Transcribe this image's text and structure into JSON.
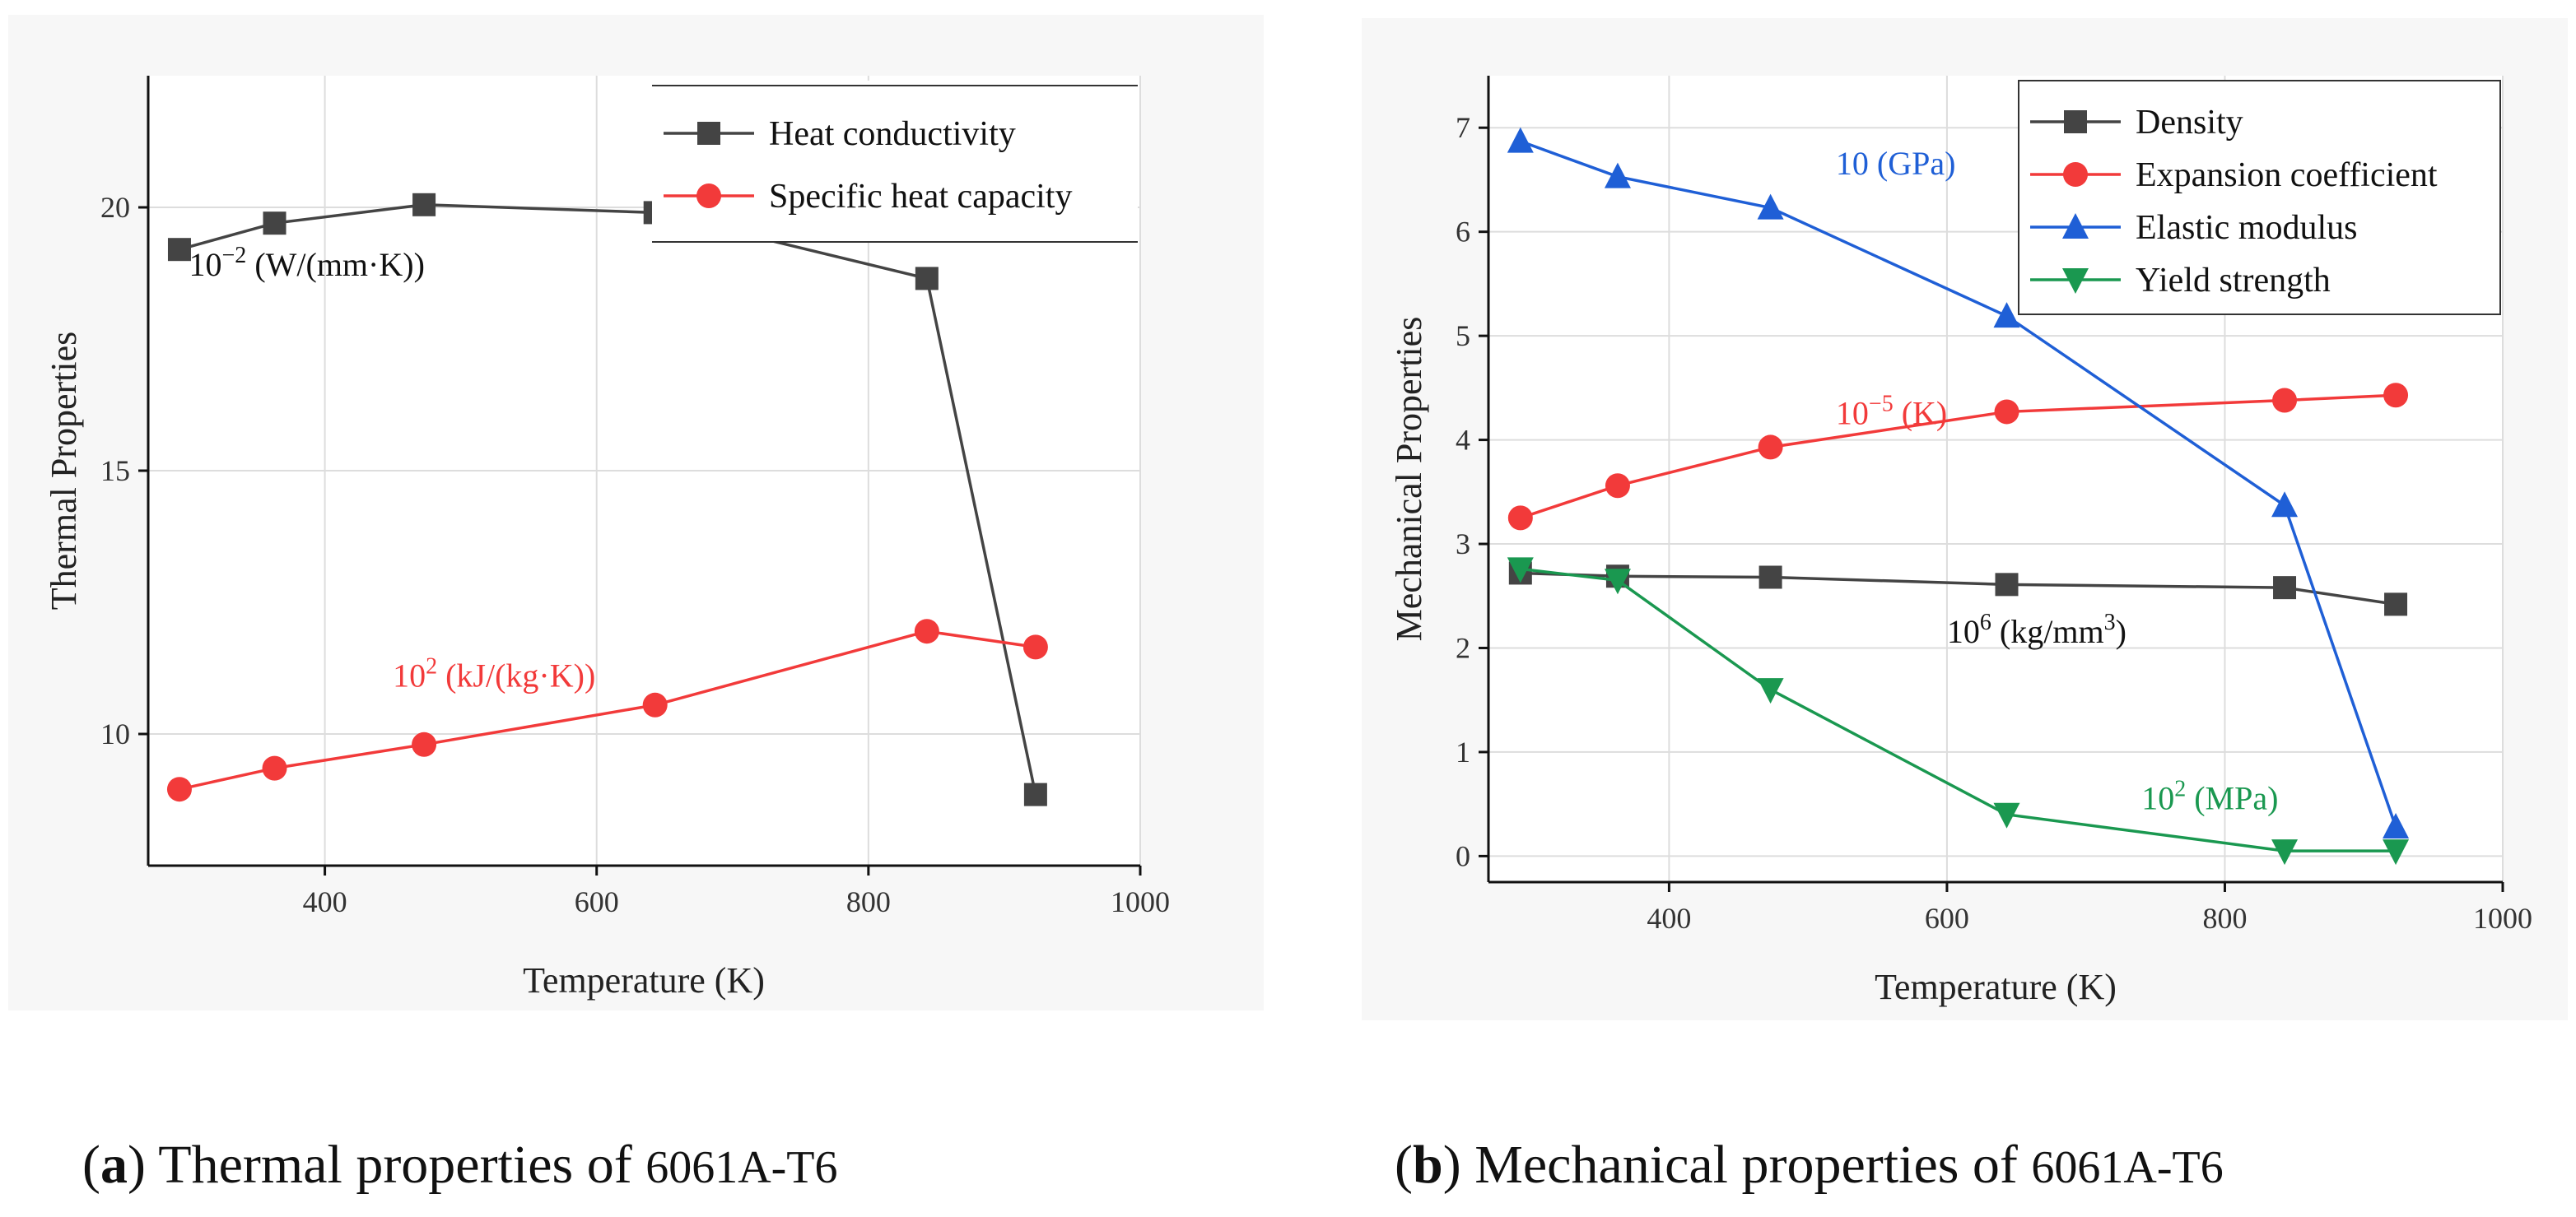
{
  "chart_data": [
    {
      "id": "a",
      "type": "line",
      "title": "",
      "xlabel": "Temperature (K)",
      "ylabel": "Thermal Properties",
      "xlim": [
        270,
        1000
      ],
      "ylim": [
        7.5,
        22.5
      ],
      "xticks": [
        "400",
        "600",
        "800",
        "1000"
      ],
      "yticks": [
        "10",
        "15",
        "20"
      ],
      "legend_position": "top-right",
      "series": [
        {
          "name": "Heat conductivity",
          "color": "#444444",
          "marker": "square",
          "x": [
            293,
            363,
            473,
            643,
            843,
            923
          ],
          "y": [
            19.2,
            19.7,
            20.05,
            19.9,
            18.65,
            8.85
          ]
        },
        {
          "name": "Specific heat capacity",
          "color": "#f23a3a",
          "marker": "circle",
          "x": [
            293,
            363,
            473,
            643,
            843,
            923
          ],
          "y": [
            8.95,
            9.35,
            9.8,
            10.55,
            11.95,
            11.65
          ]
        }
      ],
      "annotations": [
        {
          "base": "10",
          "sup": "−2",
          "rest": " (W/(mm·K))",
          "color": "#111111",
          "x": 300,
          "y": 18.7
        },
        {
          "base": "10",
          "sup": "2",
          "rest": " (kJ/(kg·K))",
          "color": "#f23a3a",
          "x": 450,
          "y": 10.9
        }
      ],
      "caption": {
        "label": "a",
        "text": " Thermal properties of ",
        "material": "6061A-T6"
      }
    },
    {
      "id": "b",
      "type": "line",
      "title": "",
      "xlabel": "Temperature (K)",
      "ylabel": "Mechanical Properties",
      "xlim": [
        270,
        1000
      ],
      "ylim": [
        -0.25,
        7.5
      ],
      "xticks": [
        "400",
        "600",
        "800",
        "1000"
      ],
      "yticks": [
        "0",
        "1",
        "2",
        "3",
        "4",
        "5",
        "6",
        "7"
      ],
      "legend_position": "top-right",
      "series": [
        {
          "name": "Density",
          "color": "#444444",
          "marker": "square",
          "x": [
            293,
            363,
            473,
            643,
            843,
            923
          ],
          "y": [
            2.72,
            2.69,
            2.68,
            2.61,
            2.58,
            2.42
          ]
        },
        {
          "name": "Expansion coefficient",
          "color": "#f23a3a",
          "marker": "circle",
          "x": [
            293,
            363,
            473,
            643,
            843,
            923
          ],
          "y": [
            3.25,
            3.56,
            3.93,
            4.27,
            4.38,
            4.43
          ]
        },
        {
          "name": "Elastic modulus",
          "color": "#1f5fd6",
          "marker": "triangle-up",
          "x": [
            293,
            363,
            473,
            643,
            843,
            923
          ],
          "y": [
            6.87,
            6.53,
            6.23,
            5.19,
            3.37,
            0.28
          ]
        },
        {
          "name": "Yield strength",
          "color": "#1a9850",
          "marker": "triangle-down",
          "x": [
            293,
            363,
            473,
            643,
            843,
            923
          ],
          "y": [
            2.76,
            2.65,
            1.6,
            0.4,
            0.05,
            0.05
          ]
        }
      ],
      "annotations": [
        {
          "base": "10 (GPa)",
          "sup": "",
          "rest": "",
          "color": "#1f5fd6",
          "x": 520,
          "y": 6.55
        },
        {
          "base": "10",
          "sup": "−5",
          "rest": " (K)",
          "color": "#f23a3a",
          "x": 520,
          "y": 4.15
        },
        {
          "base": "10",
          "sup": "6",
          "rest": " (kg/mm",
          "sup2": "3",
          "rest2": ")",
          "color": "#111111",
          "x": 600,
          "y": 2.05
        },
        {
          "base": "10",
          "sup": "2",
          "rest": " (MPa)",
          "color": "#1a9850",
          "x": 740,
          "y": 0.45
        }
      ],
      "caption": {
        "label": "b",
        "text": " Mechanical properties of ",
        "material": "6061A-T6"
      }
    }
  ]
}
